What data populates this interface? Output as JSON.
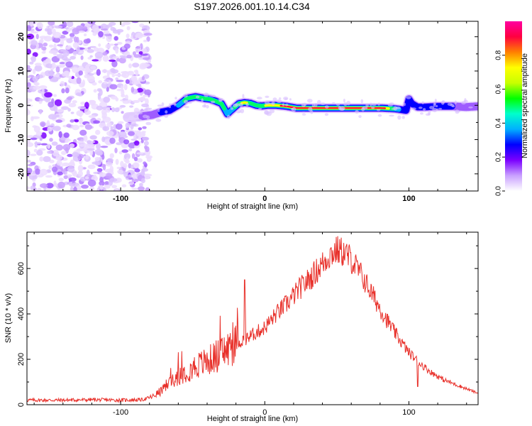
{
  "title": "S197.2026.001.10.14.C34",
  "chart_data": [
    {
      "type": "heatmap",
      "xlabel": "Height of straight line (km)",
      "ylabel": "Frequency (Hz)",
      "xlim": [
        -165,
        148
      ],
      "ylim": [
        -25,
        24.5
      ],
      "xticks": [
        "-100",
        "0",
        "100"
      ],
      "xtick_values": [
        -100,
        0,
        100
      ],
      "yticks": [
        "20",
        "10",
        "0",
        "-10",
        "-20"
      ],
      "ytick_values": [
        20,
        10,
        0,
        -10,
        -20
      ],
      "noise_region_x": [
        -165,
        -80
      ],
      "ridge": {
        "x": [
          -95,
          -85,
          -78,
          -72,
          -66,
          -60,
          -54,
          -48,
          -42,
          -38,
          -34,
          -30,
          -26,
          -22,
          -18,
          -14,
          -10,
          -6,
          -2,
          2,
          8,
          15,
          22,
          40,
          60,
          80,
          85,
          90,
          95,
          98,
          100,
          102,
          106,
          112,
          120,
          130,
          140,
          148
        ],
        "freq": [
          -3.5,
          -3.2,
          -2.8,
          -2.0,
          -1.5,
          0,
          2.0,
          2.5,
          2.0,
          1.8,
          1.2,
          0.5,
          -2.5,
          -1.0,
          0.5,
          0.8,
          0.6,
          0.0,
          -0.2,
          0.0,
          0.0,
          -0.3,
          -0.8,
          -0.8,
          -0.8,
          -0.8,
          -0.9,
          -1.0,
          -1.3,
          -1.5,
          1.8,
          0.5,
          -0.5,
          -0.5,
          -0.3,
          -0.3,
          -0.5,
          -0.3
        ],
        "amplitude": [
          0.25,
          0.3,
          0.35,
          0.45,
          0.55,
          0.6,
          0.8,
          0.75,
          0.82,
          0.85,
          0.8,
          0.85,
          0.6,
          0.7,
          0.82,
          0.88,
          0.8,
          0.78,
          0.8,
          0.88,
          0.9,
          0.95,
          0.98,
          0.98,
          0.98,
          0.98,
          0.9,
          0.7,
          0.55,
          0.45,
          0.55,
          0.6,
          0.55,
          0.5,
          0.45,
          0.45,
          0.4,
          0.35
        ]
      },
      "colorbar": {
        "label": "Normalized spectral amplitude",
        "ticks": [
          "0.0",
          "0.2",
          "0.4",
          "0.6",
          "0.8"
        ],
        "tick_values": [
          0.0,
          0.2,
          0.4,
          0.6,
          0.8
        ],
        "range": [
          0,
          1
        ],
        "colors": [
          "#ffffff",
          "#c9a0ff",
          "#7b00ff",
          "#0000ff",
          "#00b0ff",
          "#00ffcc",
          "#00ff00",
          "#c8ff00",
          "#ffff00",
          "#ff8000",
          "#ff0040",
          "#ff00a0"
        ]
      }
    },
    {
      "type": "line",
      "xlabel": "Height of straight line (km)",
      "ylabel": "SNR (10 * v/v)",
      "xlim": [
        -165,
        148
      ],
      "ylim": [
        0,
        760
      ],
      "xticks": [
        "-100",
        "0",
        "100"
      ],
      "xtick_values": [
        -100,
        0,
        100
      ],
      "yticks": [
        "0",
        "200",
        "400",
        "600"
      ],
      "ytick_values": [
        0,
        200,
        400,
        600
      ],
      "line_color": "#e8302a",
      "series": [
        {
          "name": "SNR",
          "x": [
            -165,
            -140,
            -120,
            -100,
            -85,
            -78,
            -72,
            -66,
            -60,
            -54,
            -48,
            -40,
            -32,
            -24,
            -16,
            -8,
            0,
            8,
            16,
            24,
            32,
            40,
            45,
            50,
            55,
            60,
            68,
            76,
            84,
            92,
            100,
            108,
            116,
            124,
            132,
            140,
            148
          ],
          "values": [
            20,
            20,
            22,
            20,
            22,
            35,
            60,
            100,
            130,
            150,
            170,
            190,
            220,
            250,
            280,
            310,
            340,
            400,
            450,
            510,
            560,
            620,
            660,
            680,
            670,
            640,
            560,
            470,
            380,
            300,
            230,
            180,
            140,
            110,
            90,
            70,
            50
          ]
        }
      ],
      "spikes": [
        {
          "x": -14,
          "value": 550
        },
        {
          "x": 106,
          "value": 80
        }
      ]
    }
  ]
}
